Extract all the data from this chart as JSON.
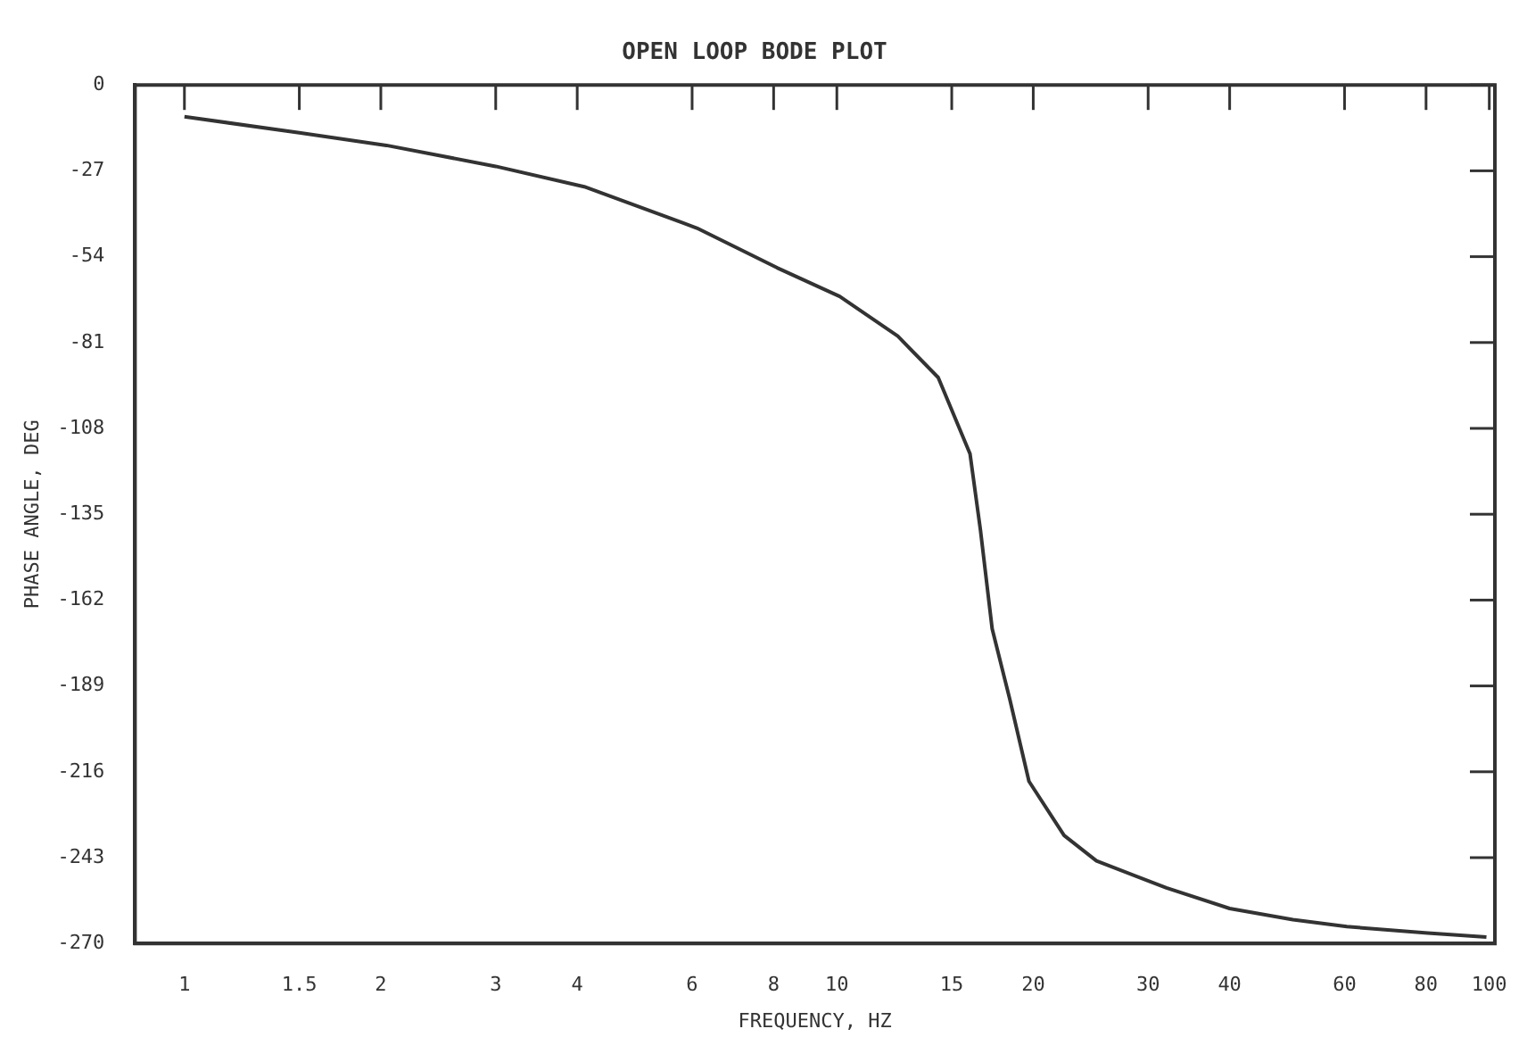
{
  "chart_data": {
    "type": "line",
    "title": "OPEN LOOP BODE PLOT",
    "xlabel": "FREQUENCY, HZ",
    "ylabel": "PHASE ANGLE, DEG",
    "log": "x",
    "grid": false,
    "legend": false,
    "marker": "none",
    "line_style": "solid",
    "x": [
      1,
      1.5,
      2.04,
      3,
      4.1,
      6.1,
      8.1,
      10.1,
      12.4,
      14.3,
      16,
      16.6,
      17.3,
      18.4,
      19.7,
      22.3,
      25,
      32,
      40,
      50,
      60.5,
      80.5,
      99
    ],
    "series": [
      {
        "color": "#333333",
        "values": [
          -10,
          -15,
          -19,
          -25.6,
          -32,
          -45,
          -57.5,
          -66.5,
          -79,
          -92,
          -116,
          -140,
          -171,
          -193,
          -219,
          -236,
          -244,
          -252.5,
          -259,
          -262.5,
          -264.7,
          -266.7,
          -268
        ]
      }
    ],
    "xlim": [
      0.84,
      102
    ],
    "xticks": [
      1,
      1.5,
      2,
      3,
      4,
      6,
      8,
      10,
      15,
      20,
      30,
      40,
      60,
      80,
      100
    ],
    "ylim": [
      -270,
      0
    ],
    "yticks": [
      0,
      -27,
      -54,
      -81,
      -108,
      -135,
      -162,
      -189,
      -216,
      -243,
      -270
    ]
  }
}
